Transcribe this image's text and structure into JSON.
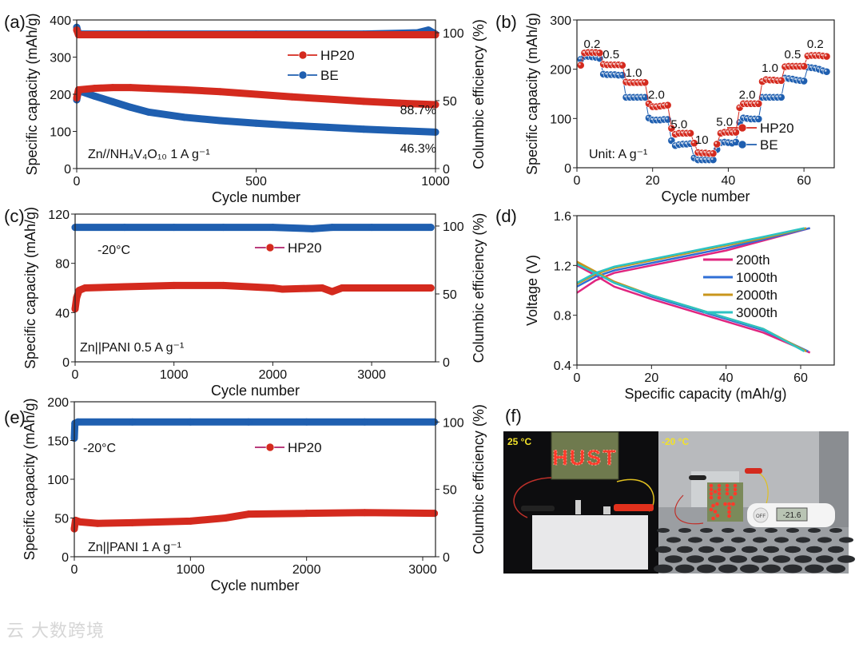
{
  "chart_data": [
    {
      "id": "a",
      "panel_label": "(a)",
      "type": "scatter",
      "xlabel": "Cycle number",
      "ylabel": "Specific capacity (mAh/g)",
      "y2label": "Columbic efficiency (%)",
      "xlim": [
        0,
        1000
      ],
      "ylim": [
        0,
        400
      ],
      "y2lim": [
        0,
        109.4
      ],
      "xticks": [
        0,
        500,
        1000
      ],
      "yticks": [
        0,
        100,
        200,
        300,
        400
      ],
      "y2ticks": [
        0,
        50,
        100
      ],
      "legend": [
        "HP20",
        "BE"
      ],
      "legend_position": "top-right",
      "annotations": [
        "88.7%",
        "46.3%",
        "Zn//NH₄V₄O₁₀ 1 A g⁻¹"
      ],
      "series": [
        {
          "name": "BE CE",
          "axis": "y2",
          "style": "band",
          "color": "#1f5fb0",
          "x": [
            0,
            5,
            200,
            500,
            800,
            950,
            980,
            1000
          ],
          "y": [
            104,
            99,
            99,
            99,
            99,
            100,
            102,
            99
          ]
        },
        {
          "name": "HP20 CE",
          "axis": "y2",
          "style": "band",
          "color": "#d42a1e",
          "x": [
            0,
            5,
            200,
            500,
            800,
            1000
          ],
          "y": [
            102,
            98.5,
            98.5,
            98.5,
            98.5,
            98.5
          ]
        },
        {
          "name": "BE",
          "axis": "y",
          "style": "band",
          "color": "#1f5fb0",
          "x": [
            0,
            5,
            50,
            100,
            150,
            200,
            300,
            400,
            500,
            600,
            700,
            800,
            900,
            1000
          ],
          "y": [
            185,
            210,
            195,
            180,
            165,
            152,
            138,
            129,
            122,
            116,
            111,
            106,
            102,
            98
          ]
        },
        {
          "name": "HP20",
          "axis": "y",
          "style": "band",
          "color": "#d42a1e",
          "x": [
            0,
            5,
            50,
            100,
            150,
            200,
            300,
            400,
            500,
            600,
            700,
            800,
            900,
            1000
          ],
          "y": [
            190,
            212,
            216,
            218,
            218,
            216,
            212,
            207,
            200,
            193,
            187,
            181,
            176,
            172
          ]
        }
      ]
    },
    {
      "id": "b",
      "panel_label": "(b)",
      "type": "scatter",
      "xlabel": "Cycle number",
      "ylabel": "Specific capacity (mAh/g)",
      "xlim": [
        0,
        68
      ],
      "ylim": [
        0,
        300
      ],
      "xticks": [
        0,
        20,
        40,
        60
      ],
      "yticks": [
        0,
        100,
        200,
        300
      ],
      "legend": [
        "HP20",
        "BE"
      ],
      "legend_position": "bottom-right",
      "annotations": [
        "Unit: A g⁻¹"
      ],
      "rate_labels": [
        "0.2",
        "0.5",
        "1.0",
        "2.0",
        "5.0",
        "10",
        "5.0",
        "2.0",
        "1.0",
        "0.5",
        "0.2"
      ],
      "series": [
        {
          "name": "BE",
          "style": "dots",
          "color": "#1f5fb0",
          "y": [
            220,
            226,
            226,
            225,
            224,
            222,
            190,
            189,
            189,
            189,
            188,
            188,
            143,
            143,
            143,
            143,
            143,
            143,
            101,
            97,
            97,
            97,
            98,
            98,
            55,
            45,
            47,
            48,
            48,
            49,
            20,
            16,
            16,
            16,
            16,
            16,
            37,
            51,
            52,
            51,
            50,
            52,
            92,
            101,
            100,
            99,
            99,
            99,
            143,
            143,
            143,
            143,
            143,
            143,
            182,
            181,
            180,
            178,
            177,
            176,
            204,
            203,
            202,
            200,
            197,
            195
          ]
        },
        {
          "name": "HP20",
          "style": "dots",
          "color": "#d42a1e",
          "y": [
            208,
            233,
            234,
            234,
            234,
            233,
            210,
            209,
            209,
            209,
            209,
            208,
            174,
            173,
            173,
            173,
            173,
            173,
            130,
            124,
            124,
            125,
            126,
            127,
            80,
            68,
            70,
            70,
            70,
            70,
            50,
            31,
            30,
            30,
            29,
            29,
            48,
            70,
            72,
            72,
            72,
            72,
            122,
            130,
            130,
            130,
            130,
            130,
            175,
            179,
            178,
            178,
            177,
            177,
            205,
            206,
            206,
            206,
            206,
            206,
            227,
            228,
            228,
            228,
            227,
            226
          ]
        }
      ]
    },
    {
      "id": "c",
      "panel_label": "(c)",
      "type": "scatter",
      "xlabel": "Cycle number",
      "ylabel": "Specific capacity (mAh/g)",
      "y2label": "Columbic efficiency (%)",
      "xlim": [
        0,
        3646
      ],
      "ylim": [
        0,
        120
      ],
      "y2lim": [
        0,
        108.8
      ],
      "xticks": [
        0,
        1000,
        2000,
        3000
      ],
      "yticks": [
        0,
        40,
        80,
        120
      ],
      "y2ticks": [
        0,
        50,
        100
      ],
      "legend": [
        "HP20"
      ],
      "legend_position": "top-right",
      "annotations": [
        "-20°C",
        "Zn||PANI   0.5 A g⁻¹"
      ],
      "series": [
        {
          "name": "HP20 CE",
          "axis": "y2",
          "style": "band",
          "color": "#1f5fb0",
          "x": [
            0,
            500,
            1000,
            1500,
            2000,
            2400,
            2600,
            3000,
            3600
          ],
          "y": [
            99,
            99,
            99,
            99,
            99,
            98,
            99,
            99,
            99
          ]
        },
        {
          "name": "HP20",
          "axis": "y",
          "style": "band",
          "color": "#d42a1e",
          "x": [
            0,
            15,
            40,
            100,
            500,
            1000,
            1500,
            2000,
            2100,
            2500,
            2600,
            2700,
            3000,
            3600
          ],
          "y": [
            43,
            52,
            58,
            60,
            61,
            62,
            62,
            60,
            59,
            60,
            57,
            60,
            60,
            60
          ]
        }
      ]
    },
    {
      "id": "d",
      "panel_label": "(d)",
      "type": "line",
      "xlabel": "Specific capacity (mAh/g)",
      "ylabel": "Voltage (V)",
      "xlim": [
        0,
        69
      ],
      "ylim": [
        0.4,
        1.6
      ],
      "xticks": [
        0,
        20,
        40,
        60
      ],
      "yticks": [
        0.4,
        0.8,
        1.2,
        1.6
      ],
      "legend": [
        "200th",
        "1000th",
        "2000th",
        "3000th"
      ],
      "legend_position": "right",
      "series": [
        {
          "name": "200th",
          "color": "#e0267f",
          "charge": {
            "x": [
              0,
              5,
              10,
              20,
              30,
              40,
              50,
              62.5
            ],
            "y": [
              0.98,
              1.08,
              1.14,
              1.2,
              1.26,
              1.32,
              1.4,
              1.5
            ]
          },
          "discharge": {
            "x": [
              0,
              5,
              10,
              20,
              30,
              40,
              50,
              62.5
            ],
            "y": [
              1.2,
              1.12,
              1.03,
              0.93,
              0.84,
              0.75,
              0.66,
              0.5
            ]
          }
        },
        {
          "name": "1000th",
          "color": "#2f6fd6",
          "charge": {
            "x": [
              0,
              5,
              10,
              20,
              30,
              40,
              50,
              62.5
            ],
            "y": [
              1.03,
              1.11,
              1.16,
              1.22,
              1.28,
              1.34,
              1.41,
              1.5
            ]
          },
          "discharge": {
            "x": [
              0,
              5,
              10,
              20,
              30,
              40,
              50,
              62
            ],
            "y": [
              1.22,
              1.14,
              1.06,
              0.95,
              0.86,
              0.77,
              0.68,
              0.51
            ]
          }
        },
        {
          "name": "2000th",
          "color": "#c9961c",
          "charge": {
            "x": [
              0,
              5,
              10,
              20,
              30,
              40,
              50,
              61.5
            ],
            "y": [
              1.05,
              1.13,
              1.18,
              1.24,
              1.3,
              1.36,
              1.42,
              1.5
            ]
          },
          "discharge": {
            "x": [
              0,
              5,
              10,
              20,
              30,
              40,
              50,
              61.5
            ],
            "y": [
              1.23,
              1.15,
              1.07,
              0.96,
              0.87,
              0.78,
              0.69,
              0.51
            ]
          }
        },
        {
          "name": "3000th",
          "color": "#2cc3c3",
          "charge": {
            "x": [
              0,
              5,
              10,
              20,
              30,
              40,
              50,
              61
            ],
            "y": [
              1.06,
              1.14,
              1.19,
              1.25,
              1.31,
              1.37,
              1.43,
              1.5
            ]
          },
          "discharge": {
            "x": [
              0,
              5,
              10,
              20,
              30,
              40,
              50,
              61
            ],
            "y": [
              1.21,
              1.14,
              1.06,
              0.96,
              0.87,
              0.78,
              0.69,
              0.51
            ]
          }
        }
      ]
    },
    {
      "id": "e",
      "panel_label": "(e)",
      "type": "scatter",
      "xlabel": "Cycle number",
      "ylabel": "Specific capacity (mAh/g)",
      "y2label": "Columbic efficiency (%)",
      "xlim": [
        0,
        3110
      ],
      "ylim": [
        0,
        200
      ],
      "y2lim": [
        0,
        115
      ],
      "xticks": [
        0,
        1000,
        2000,
        3000
      ],
      "yticks": [
        0,
        50,
        100,
        150,
        200
      ],
      "y2ticks": [
        0,
        50,
        100
      ],
      "legend": [
        "HP20"
      ],
      "legend_position": "top-right",
      "annotations": [
        "-20°C",
        "Zn||PANI   1 A g⁻¹"
      ],
      "series": [
        {
          "name": "HP20 CE",
          "axis": "y2",
          "style": "band",
          "color": "#1f5fb0",
          "x": [
            0,
            5,
            30,
            500,
            1000,
            1500,
            2000,
            2500,
            3100
          ],
          "y": [
            88,
            99,
            100,
            100,
            100,
            100,
            100,
            100,
            100
          ]
        },
        {
          "name": "HP20",
          "axis": "y",
          "style": "band",
          "color": "#d42a1e",
          "x": [
            0,
            10,
            50,
            200,
            500,
            1000,
            1300,
            1500,
            2000,
            2500,
            3100
          ],
          "y": [
            36,
            47,
            45,
            43,
            44,
            46,
            50,
            55,
            56,
            57,
            56
          ]
        }
      ]
    }
  ],
  "photo": {
    "panel_label": "(f)",
    "left_temp": "25 °C",
    "right_temp": "-20 °C",
    "led_text": "HUST",
    "thermometer_reading": "-21.6",
    "thermometer_button": "OFF"
  },
  "watermark": "云 大数跨境"
}
